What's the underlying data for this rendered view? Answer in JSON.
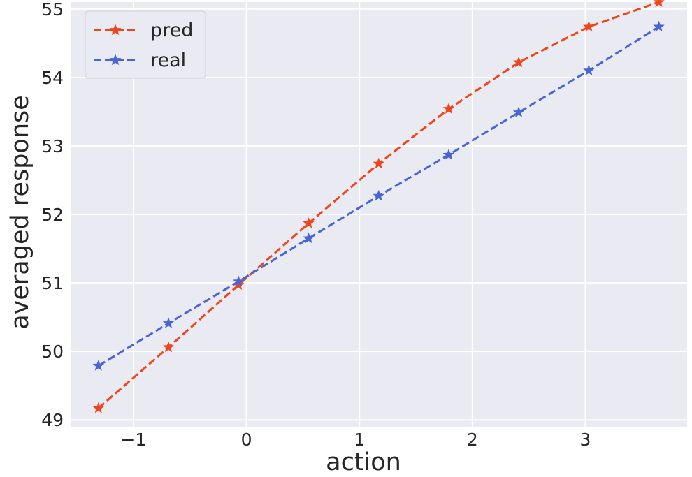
{
  "chart_data": {
    "type": "line",
    "xlabel": "action",
    "ylabel": "averaged response",
    "xlim": [
      -1.55,
      3.9
    ],
    "ylim": [
      48.9,
      55.1
    ],
    "xticks": [
      -1,
      0,
      1,
      2,
      3
    ],
    "xtick_labels": [
      "−1",
      "0",
      "1",
      "2",
      "3"
    ],
    "yticks": [
      49,
      50,
      51,
      52,
      53,
      54,
      55
    ],
    "ytick_labels": [
      "49",
      "50",
      "51",
      "52",
      "53",
      "54",
      "55"
    ],
    "grid": true,
    "legend_position": "top-left",
    "colors": {
      "background": "#eaeaf2",
      "grid": "#ffffff",
      "pred": "#f0441b",
      "real": "#4865d7"
    },
    "series": [
      {
        "name": "pred",
        "color": "#f0441b",
        "linestyle": "dashed",
        "marker": "star",
        "x": [
          -1.31,
          -0.69,
          -0.07,
          0.55,
          1.17,
          1.79,
          2.41,
          3.03,
          3.65
        ],
        "y": [
          49.17,
          50.06,
          50.97,
          51.87,
          52.74,
          53.54,
          54.22,
          54.74,
          55.1
        ]
      },
      {
        "name": "real",
        "color": "#4865d7",
        "linestyle": "dashed",
        "marker": "star",
        "x": [
          -1.31,
          -0.69,
          -0.07,
          0.55,
          1.17,
          1.79,
          2.41,
          3.03,
          3.65
        ],
        "y": [
          49.79,
          50.41,
          51.02,
          51.65,
          52.27,
          52.87,
          53.49,
          54.1,
          54.74
        ]
      }
    ]
  }
}
